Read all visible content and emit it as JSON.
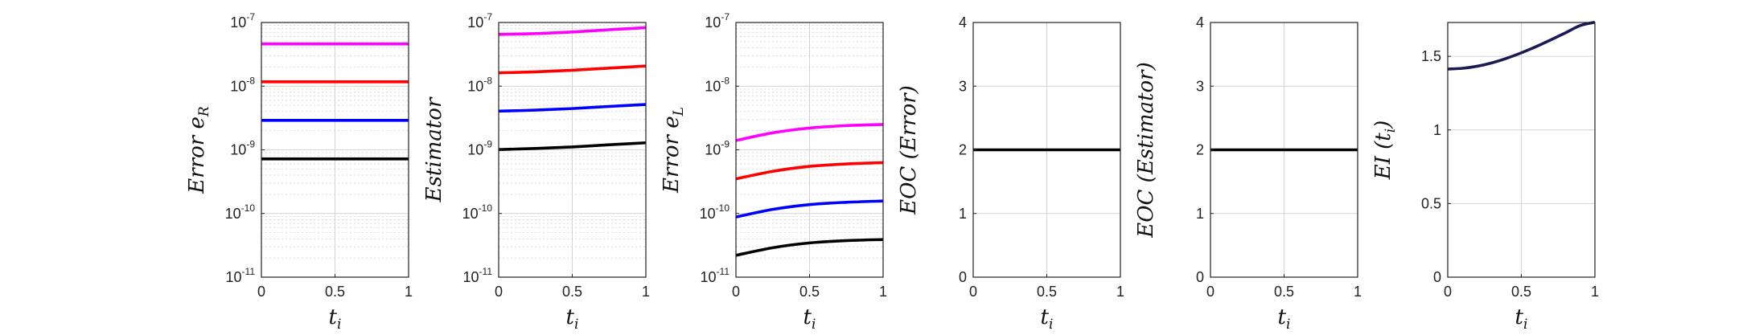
{
  "figure": {
    "chart_data": [
      {
        "type": "line",
        "scale": "log",
        "xlabel": "t",
        "xlabel_sub": "i",
        "ylabel": "Error e",
        "ylabel_sub": "R",
        "xlim": [
          0,
          1
        ],
        "ylim": [
          1e-11,
          1e-07
        ],
        "xticks": [
          "0",
          "0.5",
          "1"
        ],
        "yticks": [
          {
            "base": "10",
            "exp": "-11",
            "v": 1e-11
          },
          {
            "base": "10",
            "exp": "-10",
            "v": 1e-10
          },
          {
            "base": "10",
            "exp": "-9",
            "v": 1e-09
          },
          {
            "base": "10",
            "exp": "-8",
            "v": 1e-08
          },
          {
            "base": "10",
            "exp": "-7",
            "v": 1e-07
          }
        ],
        "series": [
          {
            "color": "#ff00ff",
            "x": [
              0,
              0.5,
              1
            ],
            "y": [
              4.6e-08,
              4.6e-08,
              4.6e-08
            ]
          },
          {
            "color": "#ff0000",
            "x": [
              0,
              0.5,
              1
            ],
            "y": [
              1.17e-08,
              1.17e-08,
              1.17e-08
            ]
          },
          {
            "color": "#0000ff",
            "x": [
              0,
              0.5,
              1
            ],
            "y": [
              2.9e-09,
              2.9e-09,
              2.9e-09
            ]
          },
          {
            "color": "#000000",
            "x": [
              0,
              0.5,
              1
            ],
            "y": [
              7.2e-10,
              7.2e-10,
              7.2e-10
            ]
          }
        ]
      },
      {
        "type": "line",
        "scale": "log",
        "xlabel": "t",
        "xlabel_sub": "i",
        "ylabel": "Estimator",
        "ylabel_sub": "",
        "xlim": [
          0,
          1
        ],
        "ylim": [
          1e-11,
          1e-07
        ],
        "xticks": [
          "0",
          "0.5",
          "1"
        ],
        "yticks": [
          {
            "base": "10",
            "exp": "-11",
            "v": 1e-11
          },
          {
            "base": "10",
            "exp": "-10",
            "v": 1e-10
          },
          {
            "base": "10",
            "exp": "-9",
            "v": 1e-09
          },
          {
            "base": "10",
            "exp": "-8",
            "v": 1e-08
          },
          {
            "base": "10",
            "exp": "-7",
            "v": 1e-07
          }
        ],
        "series": [
          {
            "color": "#ff00ff",
            "x": [
              0,
              0.25,
              0.5,
              0.75,
              1
            ],
            "y": [
              6.5e-08,
              6.7e-08,
              7.1e-08,
              7.7e-08,
              8.3e-08
            ]
          },
          {
            "color": "#ff0000",
            "x": [
              0,
              0.25,
              0.5,
              0.75,
              1
            ],
            "y": [
              1.62e-08,
              1.68e-08,
              1.78e-08,
              1.92e-08,
              2.07e-08
            ]
          },
          {
            "color": "#0000ff",
            "x": [
              0,
              0.25,
              0.5,
              0.75,
              1
            ],
            "y": [
              4.05e-09,
              4.2e-09,
              4.45e-09,
              4.8e-09,
              5.15e-09
            ]
          },
          {
            "color": "#000000",
            "x": [
              0,
              0.25,
              0.5,
              0.75,
              1
            ],
            "y": [
              1.01e-09,
              1.05e-09,
              1.11e-09,
              1.2e-09,
              1.29e-09
            ]
          }
        ]
      },
      {
        "type": "line",
        "scale": "log",
        "xlabel": "t",
        "xlabel_sub": "i",
        "ylabel": "Error e",
        "ylabel_sub": "L",
        "xlim": [
          0,
          1
        ],
        "ylim": [
          1e-11,
          1e-07
        ],
        "xticks": [
          "0",
          "0.5",
          "1"
        ],
        "yticks": [
          {
            "base": "10",
            "exp": "-11",
            "v": 1e-11
          },
          {
            "base": "10",
            "exp": "-10",
            "v": 1e-10
          },
          {
            "base": "10",
            "exp": "-9",
            "v": 1e-09
          },
          {
            "base": "10",
            "exp": "-8",
            "v": 1e-08
          },
          {
            "base": "10",
            "exp": "-7",
            "v": 1e-07
          }
        ],
        "series": [
          {
            "color": "#ff00ff",
            "x": [
              0,
              0.25,
              0.5,
              0.75,
              1
            ],
            "y": [
              1.4e-09,
              1.85e-09,
              2.2e-09,
              2.4e-09,
              2.5e-09
            ]
          },
          {
            "color": "#ff0000",
            "x": [
              0,
              0.25,
              0.5,
              0.75,
              1
            ],
            "y": [
              3.5e-10,
              4.6e-10,
              5.5e-10,
              6e-10,
              6.3e-10
            ]
          },
          {
            "color": "#0000ff",
            "x": [
              0,
              0.25,
              0.5,
              0.75,
              1
            ],
            "y": [
              8.8e-11,
              1.16e-10,
              1.38e-10,
              1.5e-10,
              1.57e-10
            ]
          },
          {
            "color": "#000000",
            "x": [
              0,
              0.25,
              0.5,
              0.75,
              1
            ],
            "y": [
              2.2e-11,
              2.9e-11,
              3.45e-11,
              3.75e-11,
              3.9e-11
            ]
          }
        ]
      },
      {
        "type": "line",
        "scale": "linear",
        "xlabel": "t",
        "xlabel_sub": "i",
        "ylabel": "EOC (Error)",
        "ylabel_sub": "",
        "xlim": [
          0,
          1
        ],
        "ylim": [
          0,
          4
        ],
        "xticks": [
          "0",
          "0.5",
          "1"
        ],
        "yticks": [
          {
            "label": "0",
            "v": 0
          },
          {
            "label": "1",
            "v": 1
          },
          {
            "label": "2",
            "v": 2
          },
          {
            "label": "3",
            "v": 3
          },
          {
            "label": "4",
            "v": 4
          }
        ],
        "series": [
          {
            "color": "#000000",
            "x": [
              0,
              1
            ],
            "y": [
              2,
              2
            ]
          }
        ]
      },
      {
        "type": "line",
        "scale": "linear",
        "xlabel": "t",
        "xlabel_sub": "i",
        "ylabel": "EOC (Estimator)",
        "ylabel_sub": "",
        "xlim": [
          0,
          1
        ],
        "ylim": [
          0,
          4
        ],
        "xticks": [
          "0",
          "0.5",
          "1"
        ],
        "yticks": [
          {
            "label": "0",
            "v": 0
          },
          {
            "label": "1",
            "v": 1
          },
          {
            "label": "2",
            "v": 2
          },
          {
            "label": "3",
            "v": 3
          },
          {
            "label": "4",
            "v": 4
          }
        ],
        "series": [
          {
            "color": "#000000",
            "x": [
              0,
              1
            ],
            "y": [
              2,
              2
            ]
          }
        ]
      },
      {
        "type": "line",
        "scale": "linear",
        "xlabel": "t",
        "xlabel_sub": "i",
        "ylabel": "EI (t",
        "ylabel_sub": "i",
        "ylabel_after": ")",
        "xlim": [
          0,
          1
        ],
        "ylim": [
          0,
          1.73
        ],
        "xticks": [
          "0",
          "0.5",
          "1"
        ],
        "yticks": [
          {
            "label": "0",
            "v": 0
          },
          {
            "label": "0.5",
            "v": 0.5
          },
          {
            "label": "1",
            "v": 1
          },
          {
            "label": "1.5",
            "v": 1.5
          }
        ],
        "series": [
          {
            "color": "#1a1a55",
            "x": [
              0,
              0.1,
              0.2,
              0.3,
              0.4,
              0.5,
              0.6,
              0.7,
              0.8,
              0.9,
              1
            ],
            "y": [
              1.414,
              1.419,
              1.433,
              1.456,
              1.487,
              1.524,
              1.566,
              1.612,
              1.66,
              1.709,
              1.732
            ]
          }
        ]
      }
    ]
  }
}
